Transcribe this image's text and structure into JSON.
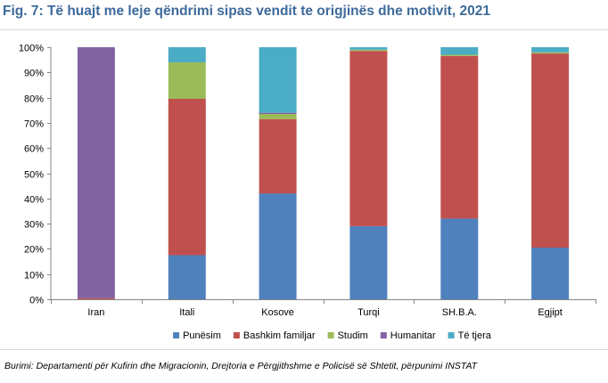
{
  "chart_data": {
    "type": "bar",
    "stacked": true,
    "title": "Fig. 7: Të huajt me leje qëndrimi sipas vendit te origjinës dhe motivit, 2021",
    "categories": [
      "Iran",
      "Itali",
      "Kosove",
      "Turqi",
      "SH.B.A.",
      "Egjipt"
    ],
    "series": [
      {
        "name": "Punësim",
        "color": "#4f81bd",
        "values": [
          0,
          17.5,
          42,
          29,
          32,
          20.5
        ]
      },
      {
        "name": "Bashkim familjar",
        "color": "#c0504d",
        "values": [
          0.5,
          62,
          29.5,
          69.5,
          64.5,
          77
        ]
      },
      {
        "name": "Studim",
        "color": "#9bbb59",
        "values": [
          0,
          14.5,
          2,
          0.5,
          0.5,
          0.5
        ]
      },
      {
        "name": "Humanitar",
        "color": "#8064a2",
        "values": [
          99.5,
          0,
          0.5,
          0,
          0,
          0
        ]
      },
      {
        "name": "Të tjera",
        "color": "#4bacc6",
        "values": [
          0,
          6,
          26,
          1,
          3,
          2
        ]
      }
    ],
    "ylim": [
      0,
      100
    ],
    "yticks": [
      "0%",
      "10%",
      "20%",
      "30%",
      "40%",
      "50%",
      "60%",
      "70%",
      "80%",
      "90%",
      "100%"
    ],
    "legend_position": "bottom",
    "grid": false
  },
  "source": "Burimi: Departamenti për Kufirin dhe Migracionin, Drejtoria e Përgjithshme e Policisë së Shtetit,  përpunimi INSTAT"
}
